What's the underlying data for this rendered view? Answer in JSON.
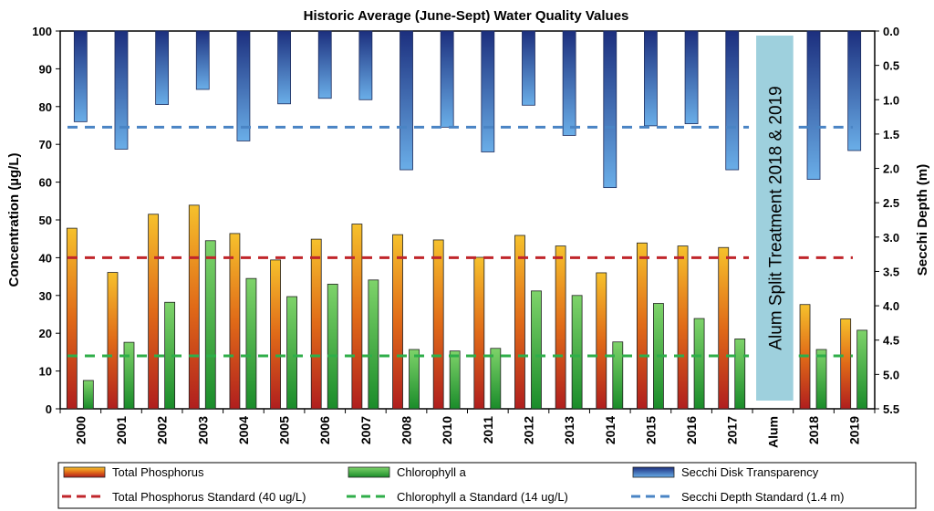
{
  "chart_data": {
    "type": "bar",
    "title": "Historic Average (June-Sept) Water Quality Values",
    "ylabel": "Concentration (µg/L)",
    "y2label": "Secchi Depth (m)",
    "ylim": [
      0,
      100
    ],
    "y2lim": [
      0,
      5.5
    ],
    "y2_inverted": true,
    "yticks": [
      "0",
      "10",
      "20",
      "30",
      "40",
      "50",
      "60",
      "70",
      "80",
      "90",
      "100"
    ],
    "y2ticks": [
      "0.0",
      "0.5",
      "1.0",
      "1.5",
      "2.0",
      "2.5",
      "3.0",
      "3.5",
      "4.0",
      "4.5",
      "5.0",
      "5.5"
    ],
    "categories": [
      "2000",
      "2001",
      "2002",
      "2003",
      "2004",
      "2005",
      "2006",
      "2007",
      "2008",
      "2010",
      "2011",
      "2012",
      "2013",
      "2014",
      "2015",
      "2016",
      "2017",
      "Alum",
      "2018",
      "2019"
    ],
    "series": [
      {
        "name": "Total Phosphorus",
        "axis": "left",
        "color_top": "#f6c12c",
        "color_bottom": "#b01e1e",
        "values": [
          47.8,
          36.1,
          51.5,
          53.9,
          46.4,
          39.4,
          44.9,
          48.9,
          46.1,
          44.7,
          40.1,
          45.9,
          43.1,
          36.0,
          43.9,
          43.1,
          42.7,
          null,
          27.6,
          23.8
        ]
      },
      {
        "name": "Chlorophyll a",
        "axis": "left",
        "color_top": "#7ed36a",
        "color_bottom": "#1a8c2a",
        "values": [
          7.5,
          17.6,
          28.2,
          44.5,
          34.5,
          29.7,
          33.0,
          34.1,
          15.7,
          15.3,
          16.0,
          31.2,
          30.0,
          17.7,
          27.9,
          23.9,
          18.5,
          null,
          15.7,
          20.8
        ]
      },
      {
        "name": "Secchi Disk Transparency",
        "axis": "right",
        "color_top": "#1c2f7e",
        "color_bottom": "#6aaee8",
        "values": [
          1.32,
          1.72,
          1.07,
          0.85,
          1.6,
          1.06,
          0.98,
          1.0,
          2.02,
          1.4,
          1.76,
          1.08,
          1.52,
          2.28,
          1.38,
          1.35,
          2.02,
          null,
          2.16,
          1.74
        ]
      }
    ],
    "reference_lines": [
      {
        "name": "Total Phosphorus Standard (40 ug/L)",
        "axis": "left",
        "value": 40,
        "color": "#c0262b"
      },
      {
        "name": "Chlorophyll a Standard (14 ug/L)",
        "axis": "left",
        "value": 14,
        "color": "#2fae49"
      },
      {
        "name": "Secchi Depth Standard (1.4 m)",
        "axis": "right",
        "value": 1.4,
        "color": "#4a84c4"
      }
    ],
    "annotation": {
      "text": "Alum Split Treatment 2018 & 2019",
      "fill": "#9ed0dd"
    },
    "legend_position": "bottom",
    "grid": false
  }
}
